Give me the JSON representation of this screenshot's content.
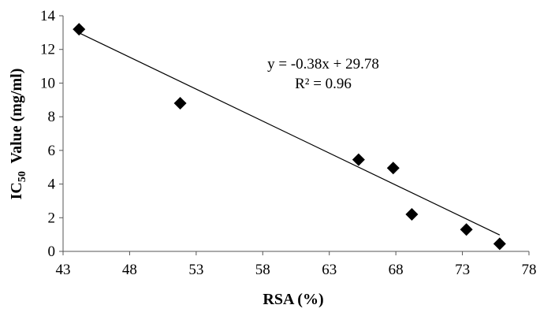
{
  "chart_data": {
    "type": "scatter",
    "xlabel": "RSA (%)",
    "ylabel": {
      "prefix": "IC",
      "subscript": "50",
      "suffix": "  Value (mg/ml)"
    },
    "xlim": [
      43,
      78
    ],
    "ylim": [
      0,
      14
    ],
    "xticks": [
      43,
      48,
      53,
      58,
      63,
      68,
      73,
      78
    ],
    "yticks": [
      0,
      2,
      4,
      6,
      8,
      10,
      12,
      14
    ],
    "grid": false,
    "legend": false,
    "marker": "diamond",
    "marker_color": "#000000",
    "points": [
      {
        "x": 44.2,
        "y": 13.2
      },
      {
        "x": 51.8,
        "y": 8.8
      },
      {
        "x": 65.2,
        "y": 5.45
      },
      {
        "x": 67.8,
        "y": 4.95
      },
      {
        "x": 69.2,
        "y": 2.2
      },
      {
        "x": 73.3,
        "y": 1.3
      },
      {
        "x": 75.8,
        "y": 0.45
      }
    ],
    "trendline": {
      "type": "linear",
      "slope": -0.38,
      "intercept": 29.78,
      "x_range": [
        44.2,
        75.8
      ]
    },
    "annotations": [
      "y = -0.38x + 29.78",
      "R² = 0.96"
    ]
  }
}
